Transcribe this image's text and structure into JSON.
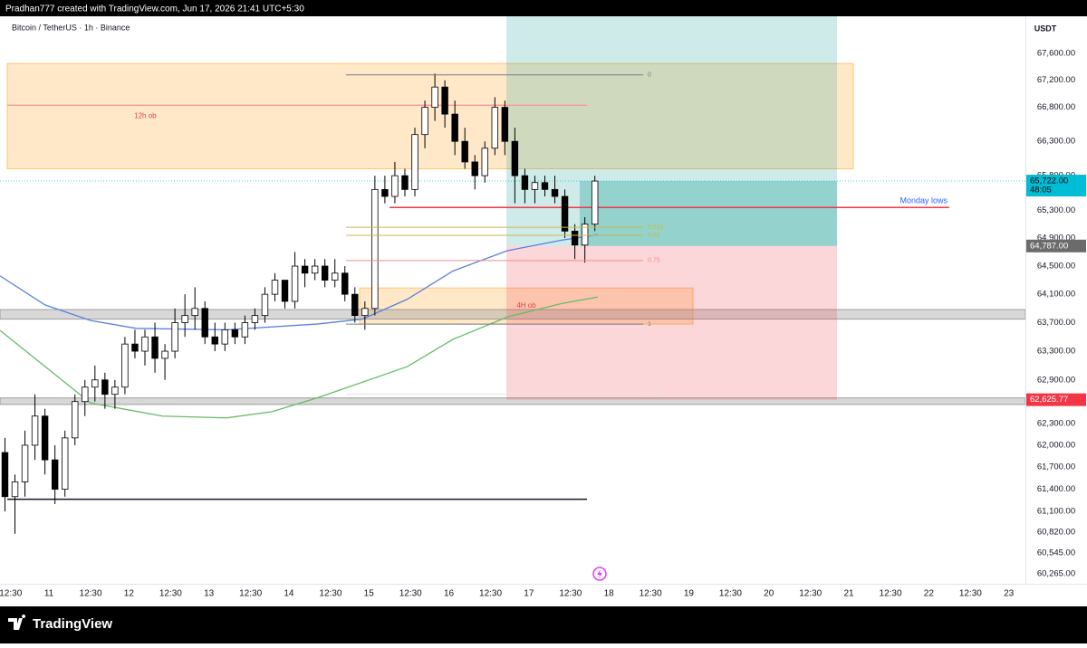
{
  "header": {
    "text": "Pradhan777 created with TradingView.com, Jun 17, 2026 21:41 UTC+5:30"
  },
  "chart_data": {
    "type": "candlestick",
    "title": "Bitcoin / TetherUS · 1h · Binance",
    "currency": "USDT",
    "x": [
      10.45,
      10.575,
      10.7,
      10.825,
      10.95,
      11.075,
      11.2,
      11.325,
      11.45,
      11.575,
      11.7,
      11.825,
      11.95,
      12.075,
      12.2,
      12.325,
      12.45,
      12.575,
      12.7,
      12.825,
      12.95,
      13.075,
      13.2,
      13.325,
      13.45,
      13.575,
      13.7,
      13.825,
      13.95,
      14.075,
      14.2,
      14.325,
      14.45,
      14.575,
      14.7,
      14.825,
      14.95,
      15.075,
      15.2,
      15.325,
      15.45,
      15.575,
      15.7,
      15.825,
      15.95,
      16.075,
      16.2,
      16.325,
      16.45,
      16.575,
      16.7,
      16.825,
      16.95,
      17.075,
      17.2,
      17.325,
      17.45,
      17.575,
      17.7,
      17.825
    ],
    "open": [
      61900,
      61300,
      61500,
      62000,
      62400,
      61800,
      61400,
      62100,
      62600,
      62800,
      62900,
      62700,
      62800,
      63400,
      63300,
      63500,
      63200,
      63300,
      63700,
      63800,
      63900,
      63500,
      63400,
      63600,
      63500,
      63700,
      63800,
      64100,
      64300,
      64000,
      64500,
      64400,
      64500,
      64300,
      64400,
      64100,
      63800,
      63900,
      65600,
      65500,
      65800,
      65600,
      66400,
      66800,
      67100,
      66700,
      66300,
      66000,
      65800,
      66200,
      66800,
      66300,
      65800,
      65600,
      65700,
      65600,
      65500,
      65000,
      64800,
      65100
    ],
    "high": [
      62100,
      61600,
      62200,
      62700,
      62500,
      62000,
      62200,
      62700,
      62900,
      63100,
      63000,
      62900,
      63500,
      63600,
      63600,
      63700,
      63400,
      63900,
      64100,
      64200,
      64000,
      63700,
      63700,
      63700,
      63800,
      63900,
      64200,
      64400,
      64300,
      64700,
      64600,
      64600,
      64600,
      64600,
      64500,
      64200,
      64000,
      65800,
      65800,
      66000,
      65900,
      66500,
      66900,
      67300,
      67200,
      66900,
      66500,
      66100,
      66300,
      66950,
      66900,
      66500,
      65900,
      65800,
      65800,
      65800,
      65600,
      65100,
      65200,
      65800
    ],
    "low": [
      61100,
      60800,
      61300,
      61800,
      61600,
      61200,
      61300,
      62000,
      62400,
      62600,
      62500,
      62500,
      62700,
      63200,
      63100,
      63000,
      62900,
      63200,
      63500,
      63600,
      63400,
      63300,
      63300,
      63400,
      63400,
      63600,
      63700,
      64000,
      63900,
      63900,
      64200,
      64300,
      64200,
      64200,
      64000,
      63700,
      63600,
      63800,
      65400,
      65400,
      65500,
      65500,
      66200,
      66600,
      66500,
      66100,
      65900,
      65600,
      65700,
      66100,
      66100,
      65400,
      65400,
      65400,
      65500,
      65400,
      64900,
      64600,
      64550,
      65000
    ],
    "close": [
      61300,
      61500,
      62000,
      62400,
      61800,
      61400,
      62100,
      62600,
      62800,
      62900,
      62700,
      62800,
      63400,
      63300,
      63500,
      63200,
      63300,
      63700,
      63800,
      63900,
      63500,
      63400,
      63600,
      63500,
      63700,
      63800,
      64100,
      64300,
      64000,
      64500,
      64400,
      64500,
      64300,
      64400,
      64100,
      63800,
      63900,
      65600,
      65500,
      65800,
      65600,
      66400,
      66800,
      67100,
      66700,
      66300,
      66000,
      65800,
      66200,
      66800,
      66300,
      65800,
      65600,
      65700,
      65600,
      65500,
      65000,
      64800,
      65100,
      65722
    ],
    "up_color": "#ffffff",
    "down_color": "#000000",
    "wick_color": "#000000",
    "overlays": [
      {
        "color": "#5b7fe0",
        "x": [
          10.39,
          10.95,
          11.52,
          12.09,
          13.22,
          14.35,
          14.92,
          15.48,
          16.05,
          16.73,
          17.41,
          17.86
        ],
        "values": [
          64360,
          63950,
          63730,
          63620,
          63600,
          63680,
          63750,
          64030,
          64430,
          64720,
          64870,
          64950
        ]
      },
      {
        "color": "#66bb6a",
        "x": [
          10.39,
          11.52,
          12.42,
          13.22,
          13.79,
          14.35,
          15.48,
          16.05,
          16.73,
          17.41,
          17.86
        ],
        "values": [
          63590,
          62580,
          62400,
          62375,
          62460,
          62650,
          63085,
          63465,
          63780,
          63970,
          64060
        ]
      }
    ],
    "xlim": [
      10.388,
      23.208
    ],
    "xticks": [
      {
        "value": 10.521,
        "label": "12:30"
      },
      11,
      {
        "value": 11.521,
        "label": "12:30"
      },
      12,
      {
        "value": 12.521,
        "label": "12:30"
      },
      13,
      {
        "value": 13.521,
        "label": "12:30"
      },
      14,
      {
        "value": 14.521,
        "label": "12:30"
      },
      15,
      {
        "value": 15.521,
        "label": "12:30"
      },
      16,
      {
        "value": 16.521,
        "label": "12:30"
      },
      17,
      {
        "value": 17.521,
        "label": "12:30"
      },
      18,
      {
        "value": 18.521,
        "label": "12:30"
      },
      19,
      {
        "value": 19.521,
        "label": "12:30"
      },
      20,
      {
        "value": 20.521,
        "label": "12:30"
      },
      21,
      {
        "value": 21.521,
        "label": "12:30"
      },
      22,
      {
        "value": 22.521,
        "label": "12:30"
      },
      23
    ],
    "ylim": [
      60133,
      68156
    ],
    "log_scale": true,
    "grid": false,
    "yticks": [
      {
        "value": 67600,
        "label": "67,600.00"
      },
      {
        "value": 67200,
        "label": "67,200.00"
      },
      {
        "value": 66800,
        "label": "66,800.00"
      },
      {
        "value": 66300,
        "label": "66,300.00"
      },
      {
        "value": 65800,
        "label": "65,800.00"
      },
      {
        "value": 65300,
        "label": "65,300.00"
      },
      {
        "value": 64900,
        "label": "64,900.00"
      },
      {
        "value": 64500,
        "label": "64,500.00"
      },
      {
        "value": 64100,
        "label": "64,100.00"
      },
      {
        "value": 63700,
        "label": "63,700.00"
      },
      {
        "value": 63300,
        "label": "63,300.00"
      },
      {
        "value": 62900,
        "label": "62,900.00"
      },
      {
        "value": 62300,
        "label": "62,300.00"
      },
      {
        "value": 62000,
        "label": "62,000.00"
      },
      {
        "value": 61700,
        "label": "61,700.00"
      },
      {
        "value": 61400,
        "label": "61,400.00"
      },
      {
        "value": 61100,
        "label": "61,100.00"
      },
      {
        "value": 60820,
        "label": "60,820.00"
      },
      {
        "value": 60545,
        "label": "60,545.00"
      },
      {
        "value": 60265,
        "label": "60,265.00"
      }
    ],
    "zones": [
      {
        "label": "12h ob",
        "x": [
          10.479,
          21.056
        ],
        "price": [
          67450,
          65900
        ],
        "color": "#ff9800"
      },
      {
        "label": "4H ob",
        "x": [
          14.884,
          19.052
        ],
        "price": [
          64190,
          63680
        ],
        "color": "#ff9800"
      }
    ],
    "bands": [
      {
        "price": [
          63884,
          63750
        ],
        "color": "#9e9e9e"
      },
      {
        "price": [
          62650,
          62560
        ],
        "color": "#9e9e9e"
      }
    ],
    "lines": [
      {
        "x": [
          10.479,
          17.727
        ],
        "price": 66830,
        "color": "#f49a9a"
      },
      {
        "label": "Monday lows",
        "x": [
          15.258,
          22.257
        ],
        "price": 65340,
        "color": "#f23645",
        "label_color": "#2962ff"
      },
      {
        "x": [
          10.479,
          17.727
        ],
        "price": 61265,
        "color": "#131722"
      }
    ],
    "fib": {
      "x": [
        14.715,
        18.429
      ],
      "price_0": 67280,
      "price_1": 63680,
      "levels": [
        {
          "level": 0,
          "color": "#787b86"
        },
        {
          "level": 0.618,
          "color": "#c9b84a"
        },
        {
          "level": 0.65,
          "color": "#c9b84a"
        },
        {
          "level": 0.75,
          "color": "#f28b8b"
        },
        {
          "level": 1,
          "color": "#787b86"
        },
        {
          "level": 1.272,
          "color": "#e3e3e3"
        }
      ]
    },
    "position": {
      "x": [
        16.719,
        20.853
      ],
      "current_x": 17.636,
      "last": {
        "value": 65722,
        "label": "65,722.00",
        "countdown": "48:05",
        "color": "#00bcd4"
      },
      "entry": {
        "value": 64787,
        "label": "64,787.00",
        "color": "#6b6b6b"
      },
      "stop": {
        "value": 62625.77,
        "label": "62,625.77",
        "color": "#f23645"
      }
    }
  },
  "footer": {
    "brand": "TradingView"
  }
}
